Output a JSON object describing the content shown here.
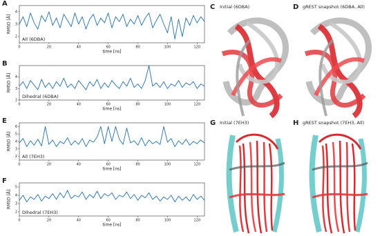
{
  "chart_data": [
    {
      "type": "line",
      "panel": "A",
      "annotation": "All (6DBA)",
      "y_label": "RMSD [Å]",
      "x_label": "time [ns]",
      "color": "#1f6fb4",
      "x": [
        0,
        2.5,
        5,
        7.5,
        10,
        12.5,
        15,
        17.5,
        20,
        22.5,
        25,
        27.5,
        30,
        32.5,
        35,
        37.5,
        40,
        42.5,
        45,
        47.5,
        50,
        52.5,
        55,
        57.5,
        60,
        62.5,
        65,
        67.5,
        70,
        72.5,
        75,
        77.5,
        80,
        82.5,
        85,
        87.5,
        90,
        92.5,
        95,
        97.5,
        100,
        102.5,
        105,
        107.5,
        110,
        112.5,
        115,
        117.5,
        120,
        122.5,
        125
      ],
      "values": [
        3.0,
        3.6,
        2.8,
        3.9,
        3.1,
        2.6,
        3.7,
        3.2,
        4.0,
        2.9,
        3.5,
        2.7,
        3.8,
        3.3,
        2.8,
        3.9,
        3.0,
        3.6,
        2.6,
        3.4,
        3.8,
        2.9,
        3.5,
        3.1,
        3.9,
        2.7,
        3.6,
        3.2,
        3.8,
        2.8,
        3.4,
        3.0,
        3.7,
        2.9,
        3.5,
        3.9,
        2.7,
        3.3,
        3.8,
        3.0,
        2.3,
        3.6,
        1.8,
        3.4,
        2.0,
        3.5,
        2.9,
        3.7,
        3.1,
        3.6,
        3.2
      ],
      "xlim": [
        0,
        125
      ],
      "xticks": [
        0,
        20,
        40,
        60,
        80,
        100,
        120
      ],
      "ylim": [
        1.5,
        4.5
      ],
      "yticks": [
        2,
        3,
        4
      ]
    },
    {
      "type": "line",
      "panel": "B",
      "annotation": "Dihedral (6DBA)",
      "y_label": "RMSD [Å]",
      "x_label": "time [ns]",
      "color": "#1f6fb4",
      "x": [
        0,
        2.5,
        5,
        7.5,
        10,
        12.5,
        15,
        17.5,
        20,
        22.5,
        25,
        27.5,
        30,
        32.5,
        35,
        37.5,
        40,
        42.5,
        45,
        47.5,
        50,
        52.5,
        55,
        57.5,
        60,
        62.5,
        65,
        67.5,
        70,
        72.5,
        75,
        77.5,
        80,
        82.5,
        85,
        87.5,
        90,
        92.5,
        95,
        97.5,
        100,
        102.5,
        105,
        107.5,
        110,
        112.5,
        115,
        117.5,
        120,
        122.5,
        125
      ],
      "values": [
        3.2,
        3.6,
        3.0,
        3.7,
        3.3,
        2.9,
        3.8,
        3.1,
        3.5,
        3.0,
        3.6,
        3.2,
        3.9,
        3.1,
        3.4,
        3.0,
        3.7,
        3.3,
        2.9,
        3.6,
        3.2,
        3.8,
        3.0,
        3.5,
        3.1,
        3.7,
        3.3,
        3.0,
        3.6,
        3.2,
        3.9,
        3.1,
        3.4,
        3.0,
        3.7,
        5.0,
        3.2,
        3.5,
        3.1,
        3.6,
        3.0,
        3.4,
        3.2,
        3.7,
        3.1,
        3.5,
        3.3,
        3.6,
        3.0,
        3.4,
        3.2
      ],
      "xlim": [
        0,
        125
      ],
      "xticks": [
        0,
        20,
        40,
        60,
        80,
        100,
        120
      ],
      "ylim": [
        2,
        5
      ],
      "yticks": [
        2,
        3,
        4
      ]
    },
    {
      "type": "line",
      "panel": "E",
      "annotation": "All (7EH3)",
      "y_label": "RMSD [Å]",
      "x_label": "time [ns]",
      "color": "#1f6fb4",
      "x": [
        0,
        2.5,
        5,
        7.5,
        10,
        12.5,
        15,
        17.5,
        20,
        22.5,
        25,
        27.5,
        30,
        32.5,
        35,
        37.5,
        40,
        42.5,
        45,
        47.5,
        50,
        52.5,
        55,
        57.5,
        60,
        62.5,
        65,
        67.5,
        70,
        72.5,
        75,
        77.5,
        80,
        82.5,
        85,
        87.5,
        90,
        92.5,
        95,
        97.5,
        100,
        102.5,
        105,
        107.5,
        110,
        112.5,
        115,
        117.5,
        120,
        122.5,
        125
      ],
      "values": [
        3.8,
        4.4,
        3.3,
        4.1,
        3.5,
        4.3,
        3.4,
        6.0,
        3.6,
        4.2,
        3.3,
        4.0,
        3.7,
        4.5,
        3.5,
        4.1,
        3.6,
        4.4,
        3.3,
        4.2,
        3.9,
        4.6,
        6.0,
        3.7,
        6.0,
        4.0,
        6.0,
        4.3,
        3.6,
        5.8,
        3.8,
        4.1,
        3.5,
        4.5,
        3.4,
        4.2,
        3.7,
        4.0,
        3.6,
        6.0,
        3.9,
        4.4,
        3.3,
        4.1,
        3.6,
        4.3,
        3.5,
        4.0,
        3.7,
        4.2,
        3.8
      ],
      "xlim": [
        0,
        125
      ],
      "xticks": [
        0,
        20,
        40,
        60,
        80,
        100,
        120
      ],
      "ylim": [
        1.5,
        6.5
      ],
      "yticks": [
        2,
        3,
        4,
        5,
        6
      ]
    },
    {
      "type": "line",
      "panel": "F",
      "annotation": "Dihedral (7EH3)",
      "y_label": "RMSD [Å]",
      "x_label": "time [ns]",
      "color": "#1f6fb4",
      "x": [
        0,
        2.5,
        5,
        7.5,
        10,
        12.5,
        15,
        17.5,
        20,
        22.5,
        25,
        27.5,
        30,
        32.5,
        35,
        37.5,
        40,
        42.5,
        45,
        47.5,
        50,
        52.5,
        55,
        57.5,
        60,
        62.5,
        65,
        67.5,
        70,
        72.5,
        75,
        77.5,
        80,
        82.5,
        85,
        87.5,
        90,
        92.5,
        95,
        97.5,
        100,
        102.5,
        105,
        107.5,
        110,
        112.5,
        115,
        117.5,
        120,
        122.5,
        125
      ],
      "values": [
        3.4,
        4.0,
        3.2,
        3.8,
        3.5,
        4.1,
        3.3,
        3.9,
        3.6,
        4.2,
        3.5,
        4.3,
        3.7,
        4.6,
        3.6,
        4.0,
        3.8,
        4.4,
        3.5,
        4.1,
        3.7,
        4.5,
        3.6,
        4.2,
        3.9,
        4.3,
        3.5,
        4.0,
        3.8,
        4.4,
        3.6,
        4.1,
        3.4,
        4.0,
        3.7,
        4.3,
        3.5,
        3.9,
        3.3,
        3.8,
        3.5,
        4.0,
        3.2,
        3.9,
        3.4,
        3.8,
        3.3,
        4.1,
        3.5,
        3.9,
        3.4
      ],
      "xlim": [
        0,
        125
      ],
      "xticks": [
        0,
        20,
        40,
        60,
        80,
        100,
        120
      ],
      "ylim": [
        1.5,
        5.5
      ],
      "yticks": [
        2,
        3,
        4,
        5
      ]
    }
  ],
  "panels": [
    {
      "label": "C",
      "title": "Initial (6DBA)"
    },
    {
      "label": "D",
      "title": "gREST snapshot (6DBA, All)"
    },
    {
      "label": "G",
      "title": "Initial (7EH3)"
    },
    {
      "label": "H",
      "title": "gREST snapshot (7EH3, All)"
    }
  ]
}
